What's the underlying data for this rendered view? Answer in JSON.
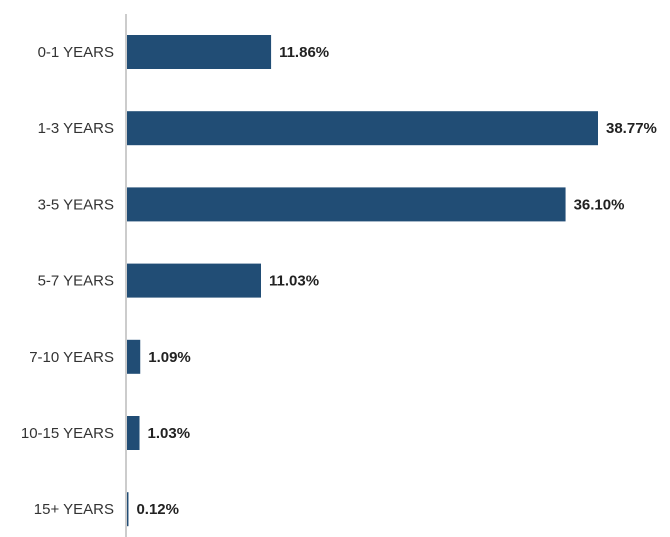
{
  "chart_data": {
    "type": "bar",
    "orientation": "horizontal",
    "categories": [
      "0-1 YEARS",
      "1-3 YEARS",
      "3-5 YEARS",
      "5-7 YEARS",
      "7-10 YEARS",
      "10-15 YEARS",
      "15+ YEARS"
    ],
    "values": [
      11.86,
      38.77,
      36.1,
      11.03,
      1.09,
      1.03,
      0.12
    ],
    "value_labels": [
      "11.86%",
      "38.77%",
      "36.10%",
      "11.03%",
      "1.09%",
      "1.03%",
      "0.12%"
    ],
    "xlim": [
      0,
      38.77
    ],
    "grid": false,
    "legend": "none",
    "colors": {
      "bar": "#214d75",
      "axis": "#9a9a9a"
    }
  }
}
